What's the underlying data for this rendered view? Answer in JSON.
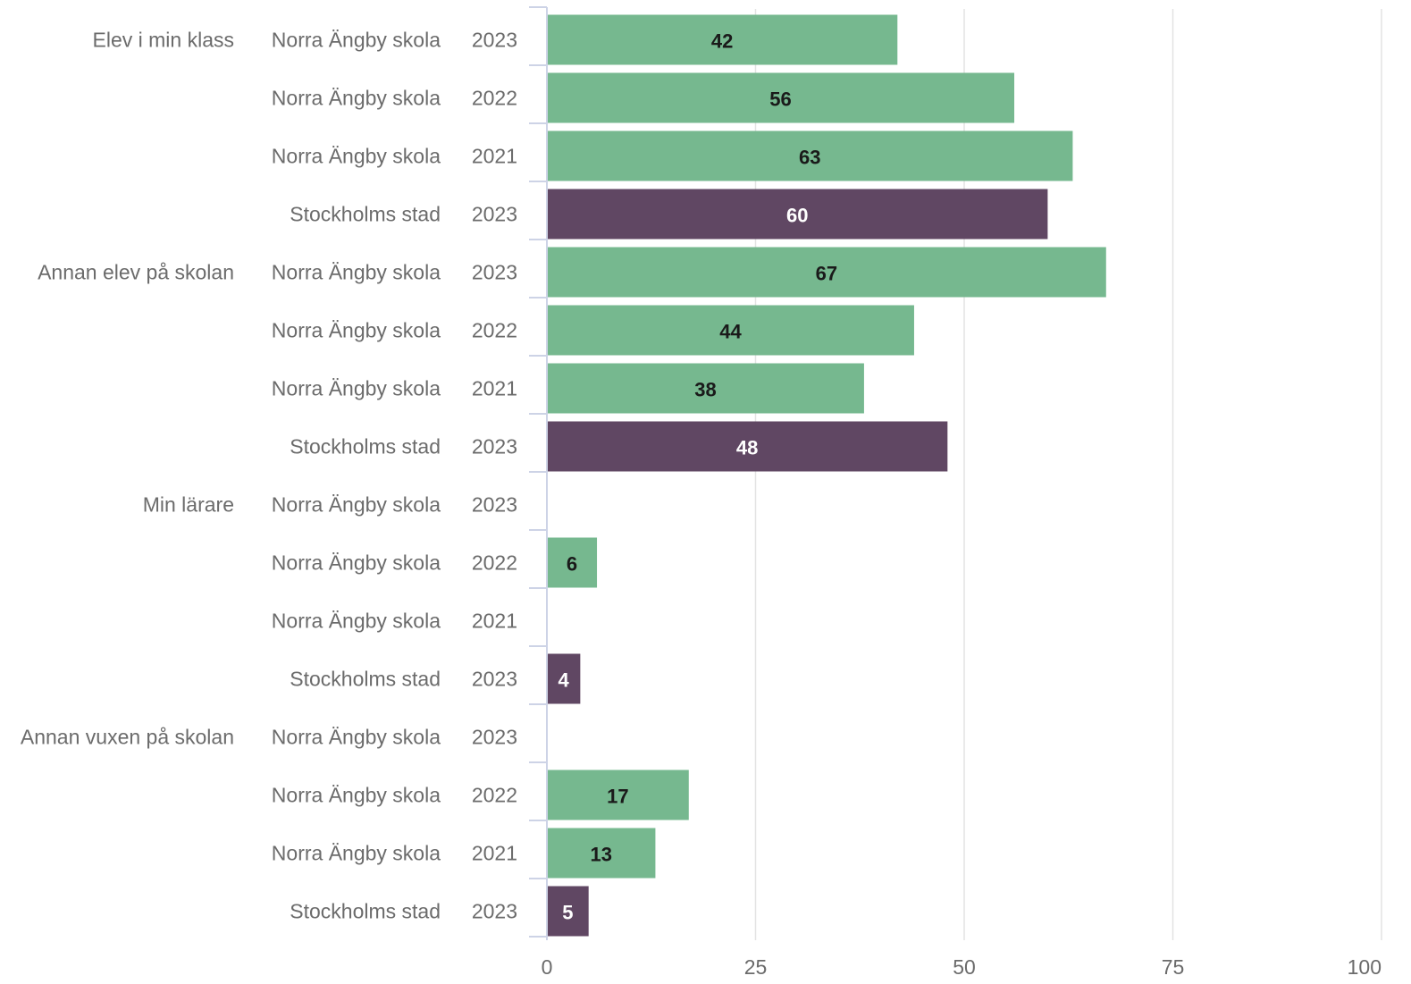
{
  "chart_data": {
    "type": "bar",
    "orientation": "horizontal",
    "xlim": [
      0,
      100
    ],
    "xticks": [
      "0",
      "25",
      "50",
      "75",
      "100"
    ],
    "grid": true,
    "colors": {
      "school": "#76b88f",
      "city": "#604763",
      "label_dark": "#1a1a1a",
      "label_light": "#ffffff"
    },
    "groups": [
      {
        "label": "Elev i min klass",
        "rows": [
          {
            "entity": "Norra Ängby skola",
            "year": "2023",
            "value": 42,
            "kind": "school"
          },
          {
            "entity": "Norra Ängby skola",
            "year": "2022",
            "value": 56,
            "kind": "school"
          },
          {
            "entity": "Norra Ängby skola",
            "year": "2021",
            "value": 63,
            "kind": "school"
          },
          {
            "entity": "Stockholms stad",
            "year": "2023",
            "value": 60,
            "kind": "city"
          }
        ]
      },
      {
        "label": "Annan elev på skolan",
        "rows": [
          {
            "entity": "Norra Ängby skola",
            "year": "2023",
            "value": 67,
            "kind": "school"
          },
          {
            "entity": "Norra Ängby skola",
            "year": "2022",
            "value": 44,
            "kind": "school"
          },
          {
            "entity": "Norra Ängby skola",
            "year": "2021",
            "value": 38,
            "kind": "school"
          },
          {
            "entity": "Stockholms stad",
            "year": "2023",
            "value": 48,
            "kind": "city"
          }
        ]
      },
      {
        "label": "Min lärare",
        "rows": [
          {
            "entity": "Norra Ängby skola",
            "year": "2023",
            "value": null,
            "kind": "school"
          },
          {
            "entity": "Norra Ängby skola",
            "year": "2022",
            "value": 6,
            "kind": "school"
          },
          {
            "entity": "Norra Ängby skola",
            "year": "2021",
            "value": null,
            "kind": "school"
          },
          {
            "entity": "Stockholms stad",
            "year": "2023",
            "value": 4,
            "kind": "city"
          }
        ]
      },
      {
        "label": "Annan vuxen på skolan",
        "rows": [
          {
            "entity": "Norra Ängby skola",
            "year": "2023",
            "value": null,
            "kind": "school"
          },
          {
            "entity": "Norra Ängby skola",
            "year": "2022",
            "value": 17,
            "kind": "school"
          },
          {
            "entity": "Norra Ängby skola",
            "year": "2021",
            "value": 13,
            "kind": "school"
          },
          {
            "entity": "Stockholms stad",
            "year": "2023",
            "value": 5,
            "kind": "city"
          }
        ]
      }
    ]
  }
}
